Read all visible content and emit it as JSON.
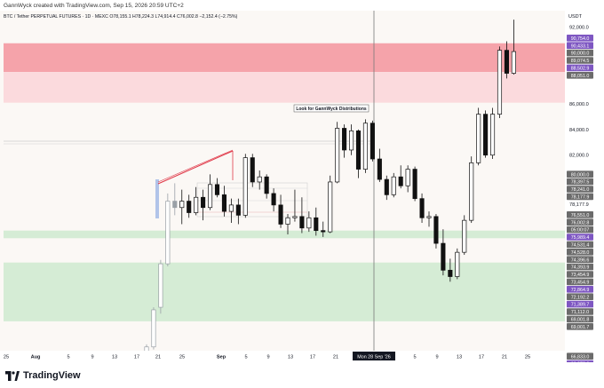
{
  "header": {
    "credit": "GannWyck created with TradingView.com, Sep 15, 2026 20:59 UTC+2"
  },
  "legend": {
    "symbol": "BTC / Tether PERPETUAL FUTURES · 1D · MEXC",
    "open": "O78,155.1",
    "high": "H78,224.3",
    "low": "L74,914.4",
    "close": "C76,002.8",
    "change": "−2,152.4 (−2.75%)"
  },
  "currency": "USDT",
  "annotation": "Look for GannWyck Distributions",
  "footer": {
    "logo_text": "TradingView"
  },
  "colors": {
    "red_zone": "#f5a3aa",
    "light_red_zone": "#fbdadd",
    "green_zone": "#d5ecd5",
    "candle": "#111111",
    "pale_candle": "#9aa0a6",
    "trendline": "#e03a4a",
    "purple_tag": "#7e57c2",
    "gray_tag": "#6b6b6b"
  },
  "chart_data": {
    "type": "candlestick",
    "ylim": [
      65800,
      93300
    ],
    "y_ticks": [
      "92,000.0",
      "86,000.0",
      "84,000.0",
      "82,000.0",
      "80,000.0",
      "78,177.9"
    ],
    "x_ticks": [
      "25",
      "Aug",
      "5",
      "9",
      "13",
      "17",
      "21",
      "25",
      "Sep",
      "5",
      "9",
      "13",
      "17",
      "21",
      "Mon 28 Sep '26",
      "5",
      "9",
      "13",
      "17",
      "21",
      "25"
    ],
    "price_tags": [
      {
        "label": "90,754.0",
        "color": "#7e57c2"
      },
      {
        "label": "90,433.1",
        "color": "#7e57c2"
      },
      {
        "label": "90,000.0",
        "color": "#6b6b6b"
      },
      {
        "label": "89,074.5",
        "color": "#6b6b6b"
      },
      {
        "label": "88,502.9",
        "color": "#7e57c2"
      },
      {
        "label": "88,051.0",
        "color": "#6b6b6b"
      },
      {
        "label": "80,000.0",
        "color": "#6b6b6b"
      },
      {
        "label": "78,397.5",
        "color": "#6b6b6b"
      },
      {
        "label": "78,241.0",
        "color": "#6b6b6b"
      },
      {
        "label": "78,177.9",
        "color": "#6b6b6b"
      },
      {
        "label": "76,551.0",
        "color": "#6b6b6b"
      },
      {
        "label": "76,002.8",
        "color": "#6b6b6b"
      },
      {
        "label": "05:00:07",
        "color": "#6b6b6b"
      },
      {
        "label": "75,989.4",
        "color": "#7e57c2"
      },
      {
        "label": "74,531.4",
        "color": "#6b6b6b"
      },
      {
        "label": "74,528.0",
        "color": "#6b6b6b"
      },
      {
        "label": "74,396.6",
        "color": "#6b6b6b"
      },
      {
        "label": "74,393.9",
        "color": "#6b6b6b"
      },
      {
        "label": "73,454.9",
        "color": "#6b6b6b"
      },
      {
        "label": "73,454.9",
        "color": "#6b6b6b"
      },
      {
        "label": "72,864.9",
        "color": "#7e57c2"
      },
      {
        "label": "72,192.2",
        "color": "#6b6b6b"
      },
      {
        "label": "71,389.7",
        "color": "#7e57c2"
      },
      {
        "label": "71,112.0",
        "color": "#6b6b6b"
      },
      {
        "label": "69,001.8",
        "color": "#6b6b6b"
      },
      {
        "label": "69,001.7",
        "color": "#6b6b6b"
      },
      {
        "label": "66,833.0",
        "color": "#6b6b6b"
      },
      {
        "label": "66,378.6",
        "color": "#7e57c2"
      }
    ],
    "zones": [
      {
        "kind": "red",
        "from": 88500,
        "to": 90750
      },
      {
        "kind": "light_red",
        "from": 86100,
        "to": 88500
      },
      {
        "kind": "green",
        "from": 75500,
        "to": 76100
      },
      {
        "kind": "green",
        "from": 69000,
        "to": 73600
      }
    ],
    "candles": [
      {
        "o": 66400,
        "h": 67200,
        "l": 66000,
        "c": 67000,
        "pale": true
      },
      {
        "o": 67000,
        "h": 70100,
        "l": 66800,
        "c": 69900,
        "pale": true
      },
      {
        "o": 70100,
        "h": 73800,
        "l": 69600,
        "c": 73500,
        "pale": true
      },
      {
        "o": 73500,
        "h": 79000,
        "l": 73300,
        "c": 78400,
        "pale": true
      },
      {
        "o": 78400,
        "h": 79800,
        "l": 77300,
        "c": 77900,
        "pale": true
      },
      {
        "o": 77900,
        "h": 79300,
        "l": 76600,
        "c": 78400,
        "pale": false
      },
      {
        "o": 78400,
        "h": 78900,
        "l": 77100,
        "c": 77500,
        "pale": false
      },
      {
        "o": 77500,
        "h": 79500,
        "l": 77300,
        "c": 78700,
        "pale": false
      },
      {
        "o": 78700,
        "h": 79300,
        "l": 76900,
        "c": 77900,
        "pale": false
      },
      {
        "o": 77900,
        "h": 80500,
        "l": 77700,
        "c": 79700,
        "pale": false
      },
      {
        "o": 79700,
        "h": 80200,
        "l": 78700,
        "c": 78900,
        "pale": false
      },
      {
        "o": 78900,
        "h": 79600,
        "l": 77200,
        "c": 77600,
        "pale": false
      },
      {
        "o": 77600,
        "h": 78600,
        "l": 76700,
        "c": 78100,
        "pale": false
      },
      {
        "o": 78100,
        "h": 78600,
        "l": 76600,
        "c": 77300,
        "pale": false
      },
      {
        "o": 77300,
        "h": 82100,
        "l": 77100,
        "c": 81800,
        "pale": false
      },
      {
        "o": 81800,
        "h": 82100,
        "l": 79500,
        "c": 79900,
        "pale": false
      },
      {
        "o": 79900,
        "h": 80800,
        "l": 79300,
        "c": 80300,
        "pale": false
      },
      {
        "o": 80300,
        "h": 80500,
        "l": 78600,
        "c": 79000,
        "pale": false
      },
      {
        "o": 79000,
        "h": 79400,
        "l": 77600,
        "c": 78100,
        "pale": false
      },
      {
        "o": 78100,
        "h": 78900,
        "l": 76300,
        "c": 76600,
        "pale": false
      },
      {
        "o": 76600,
        "h": 77400,
        "l": 75800,
        "c": 77100,
        "pale": false
      },
      {
        "o": 77100,
        "h": 79300,
        "l": 76800,
        "c": 77200,
        "pale": false
      },
      {
        "o": 77200,
        "h": 78700,
        "l": 75900,
        "c": 76300,
        "pale": false
      },
      {
        "o": 76300,
        "h": 77600,
        "l": 76000,
        "c": 77100,
        "pale": false
      },
      {
        "o": 77100,
        "h": 77900,
        "l": 75700,
        "c": 76100,
        "pale": false
      },
      {
        "o": 76100,
        "h": 76800,
        "l": 75600,
        "c": 76000,
        "pale": false
      },
      {
        "o": 76000,
        "h": 80400,
        "l": 75900,
        "c": 79900,
        "pale": false
      },
      {
        "o": 79900,
        "h": 84600,
        "l": 79800,
        "c": 84100,
        "pale": false
      },
      {
        "o": 84100,
        "h": 84400,
        "l": 81800,
        "c": 82400,
        "pale": false
      },
      {
        "o": 82400,
        "h": 84400,
        "l": 82000,
        "c": 83900,
        "pale": false
      },
      {
        "o": 83900,
        "h": 84000,
        "l": 80200,
        "c": 80900,
        "pale": false
      },
      {
        "o": 80900,
        "h": 84800,
        "l": 80600,
        "c": 84500,
        "pale": false
      },
      {
        "o": 84500,
        "h": 84700,
        "l": 81500,
        "c": 81700,
        "pale": false
      },
      {
        "o": 81700,
        "h": 82500,
        "l": 79900,
        "c": 80100,
        "pale": false
      },
      {
        "o": 80100,
        "h": 80400,
        "l": 78500,
        "c": 78900,
        "pale": false
      },
      {
        "o": 78900,
        "h": 80600,
        "l": 78700,
        "c": 80300,
        "pale": false
      },
      {
        "o": 80300,
        "h": 81200,
        "l": 79400,
        "c": 79600,
        "pale": false
      },
      {
        "o": 79600,
        "h": 81200,
        "l": 79100,
        "c": 80900,
        "pale": false
      },
      {
        "o": 80900,
        "h": 81100,
        "l": 78400,
        "c": 78600,
        "pale": false
      },
      {
        "o": 78600,
        "h": 79000,
        "l": 76700,
        "c": 77100,
        "pale": false
      },
      {
        "o": 77100,
        "h": 77600,
        "l": 76400,
        "c": 77200,
        "pale": false
      },
      {
        "o": 77200,
        "h": 77400,
        "l": 74700,
        "c": 75100,
        "pale": false
      },
      {
        "o": 75100,
        "h": 76200,
        "l": 72600,
        "c": 73000,
        "pale": false
      },
      {
        "o": 73000,
        "h": 73900,
        "l": 72100,
        "c": 72500,
        "pale": false
      },
      {
        "o": 72500,
        "h": 74700,
        "l": 72300,
        "c": 74400,
        "pale": false
      },
      {
        "o": 74400,
        "h": 77300,
        "l": 74200,
        "c": 76900,
        "pale": false
      },
      {
        "o": 76900,
        "h": 81900,
        "l": 76700,
        "c": 81400,
        "pale": false
      },
      {
        "o": 81400,
        "h": 85700,
        "l": 81200,
        "c": 85200,
        "pale": false
      },
      {
        "o": 85200,
        "h": 85500,
        "l": 81800,
        "c": 82000,
        "pale": false
      },
      {
        "o": 82000,
        "h": 85700,
        "l": 81700,
        "c": 85200,
        "pale": false
      },
      {
        "o": 85200,
        "h": 90500,
        "l": 84900,
        "c": 90200,
        "pale": false
      },
      {
        "o": 90200,
        "h": 90900,
        "l": 88000,
        "c": 88400,
        "pale": false
      },
      {
        "o": 88400,
        "h": 92600,
        "l": 88300,
        "c": 90100,
        "pale": false
      }
    ]
  }
}
